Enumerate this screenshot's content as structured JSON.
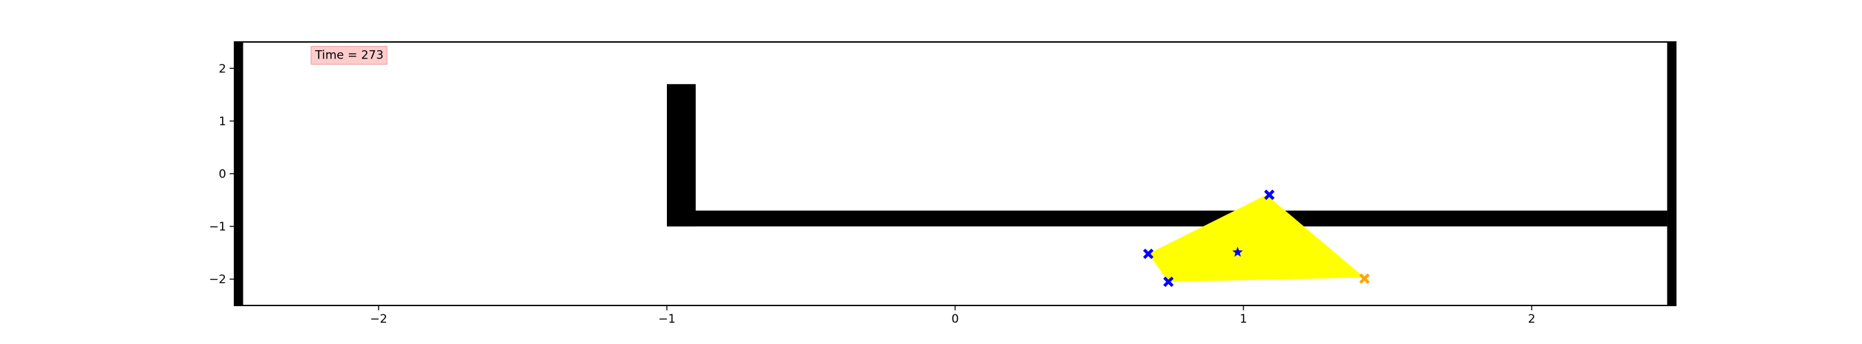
{
  "chart_data": {
    "type": "scatter",
    "xlim": [
      -2.5,
      2.5
    ],
    "ylim": [
      -2.5,
      2.5
    ],
    "x_ticks": [
      -2,
      -1,
      0,
      1,
      2
    ],
    "y_ticks": [
      -2,
      -1,
      0,
      1,
      2
    ],
    "x_tick_labels": [
      "−2",
      "−1",
      "0",
      "1",
      "2"
    ],
    "y_tick_labels": [
      "−2",
      "−1",
      "0",
      "1",
      "2"
    ],
    "grid": false,
    "annotation": {
      "text": "Time = 273",
      "x": -2.22,
      "y": 2.26
    },
    "walls": [
      {
        "x0": -2.5,
        "x1": -2.47,
        "y0": -2.5,
        "y1": 2.5
      },
      {
        "x0": 2.47,
        "x1": 2.5,
        "y0": -2.5,
        "y1": 2.5
      },
      {
        "x0": -1.0,
        "x1": -0.9,
        "y0": -1.0,
        "y1": 1.7
      },
      {
        "x0": -1.0,
        "x1": 2.47,
        "y0": -1.0,
        "y1": -0.7
      }
    ],
    "region": {
      "color": "#ffff00",
      "points": [
        [
          1.08,
          -0.4
        ],
        [
          1.42,
          -1.97
        ],
        [
          0.74,
          -2.05
        ],
        [
          0.67,
          -1.52
        ]
      ]
    },
    "markers": [
      {
        "x": 0.67,
        "y": -1.52,
        "marker": "x",
        "color": "#0000ff"
      },
      {
        "x": 0.74,
        "y": -2.05,
        "marker": "x",
        "color": "#0000ff"
      },
      {
        "x": 1.09,
        "y": -0.4,
        "marker": "x",
        "color": "#0000ff"
      },
      {
        "x": 1.42,
        "y": -1.99,
        "marker": "x",
        "color": "#ffa500"
      },
      {
        "x": 0.98,
        "y": -1.49,
        "marker": "star",
        "color": "#0000ff"
      }
    ]
  }
}
